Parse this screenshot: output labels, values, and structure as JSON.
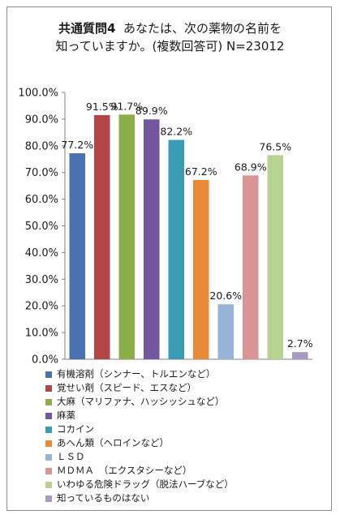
{
  "chart_data": {
    "type": "bar",
    "title_line1_question": "共通質問4",
    "title_line1_rest": "あなたは、次の薬物の名前を",
    "title_line2": "知っていますか。(複数回答可) N=23012",
    "categories": [
      "有機溶剤（シンナー、トルエンなど）",
      "覚せい剤（スピード、エスなど）",
      "大麻（マリファナ、ハッシッシュなど）",
      "麻薬",
      "コカイン",
      "あへん類（ヘロインなど）",
      "ＬＳＤ",
      "ＭＤＭＡ　（エクスタシーなど）",
      "いわゆる危険ドラッグ（脱法ハーブなど）",
      "知っているものはない"
    ],
    "values": [
      77.2,
      91.5,
      91.7,
      89.9,
      82.2,
      67.2,
      20.6,
      68.9,
      76.5,
      2.7
    ],
    "data_labels": [
      "77.2%",
      "91.5%",
      "91.7%",
      "89.9%",
      "82.2%",
      "67.2%",
      "20.6%",
      "68.9%",
      "76.5%",
      "2.7%"
    ],
    "colors": [
      "#4a72b0",
      "#b04646",
      "#8cae48",
      "#7455a0",
      "#3a9cb4",
      "#e88a38",
      "#97b3d8",
      "#d89594",
      "#b8d290",
      "#a79ac4"
    ],
    "yticks": [
      "0.0%",
      "10.0%",
      "20.0%",
      "30.0%",
      "40.0%",
      "50.0%",
      "60.0%",
      "70.0%",
      "80.0%",
      "90.0%",
      "100.0%"
    ],
    "ylim": [
      0,
      100
    ],
    "grid": false,
    "legend_position": "bottom"
  }
}
